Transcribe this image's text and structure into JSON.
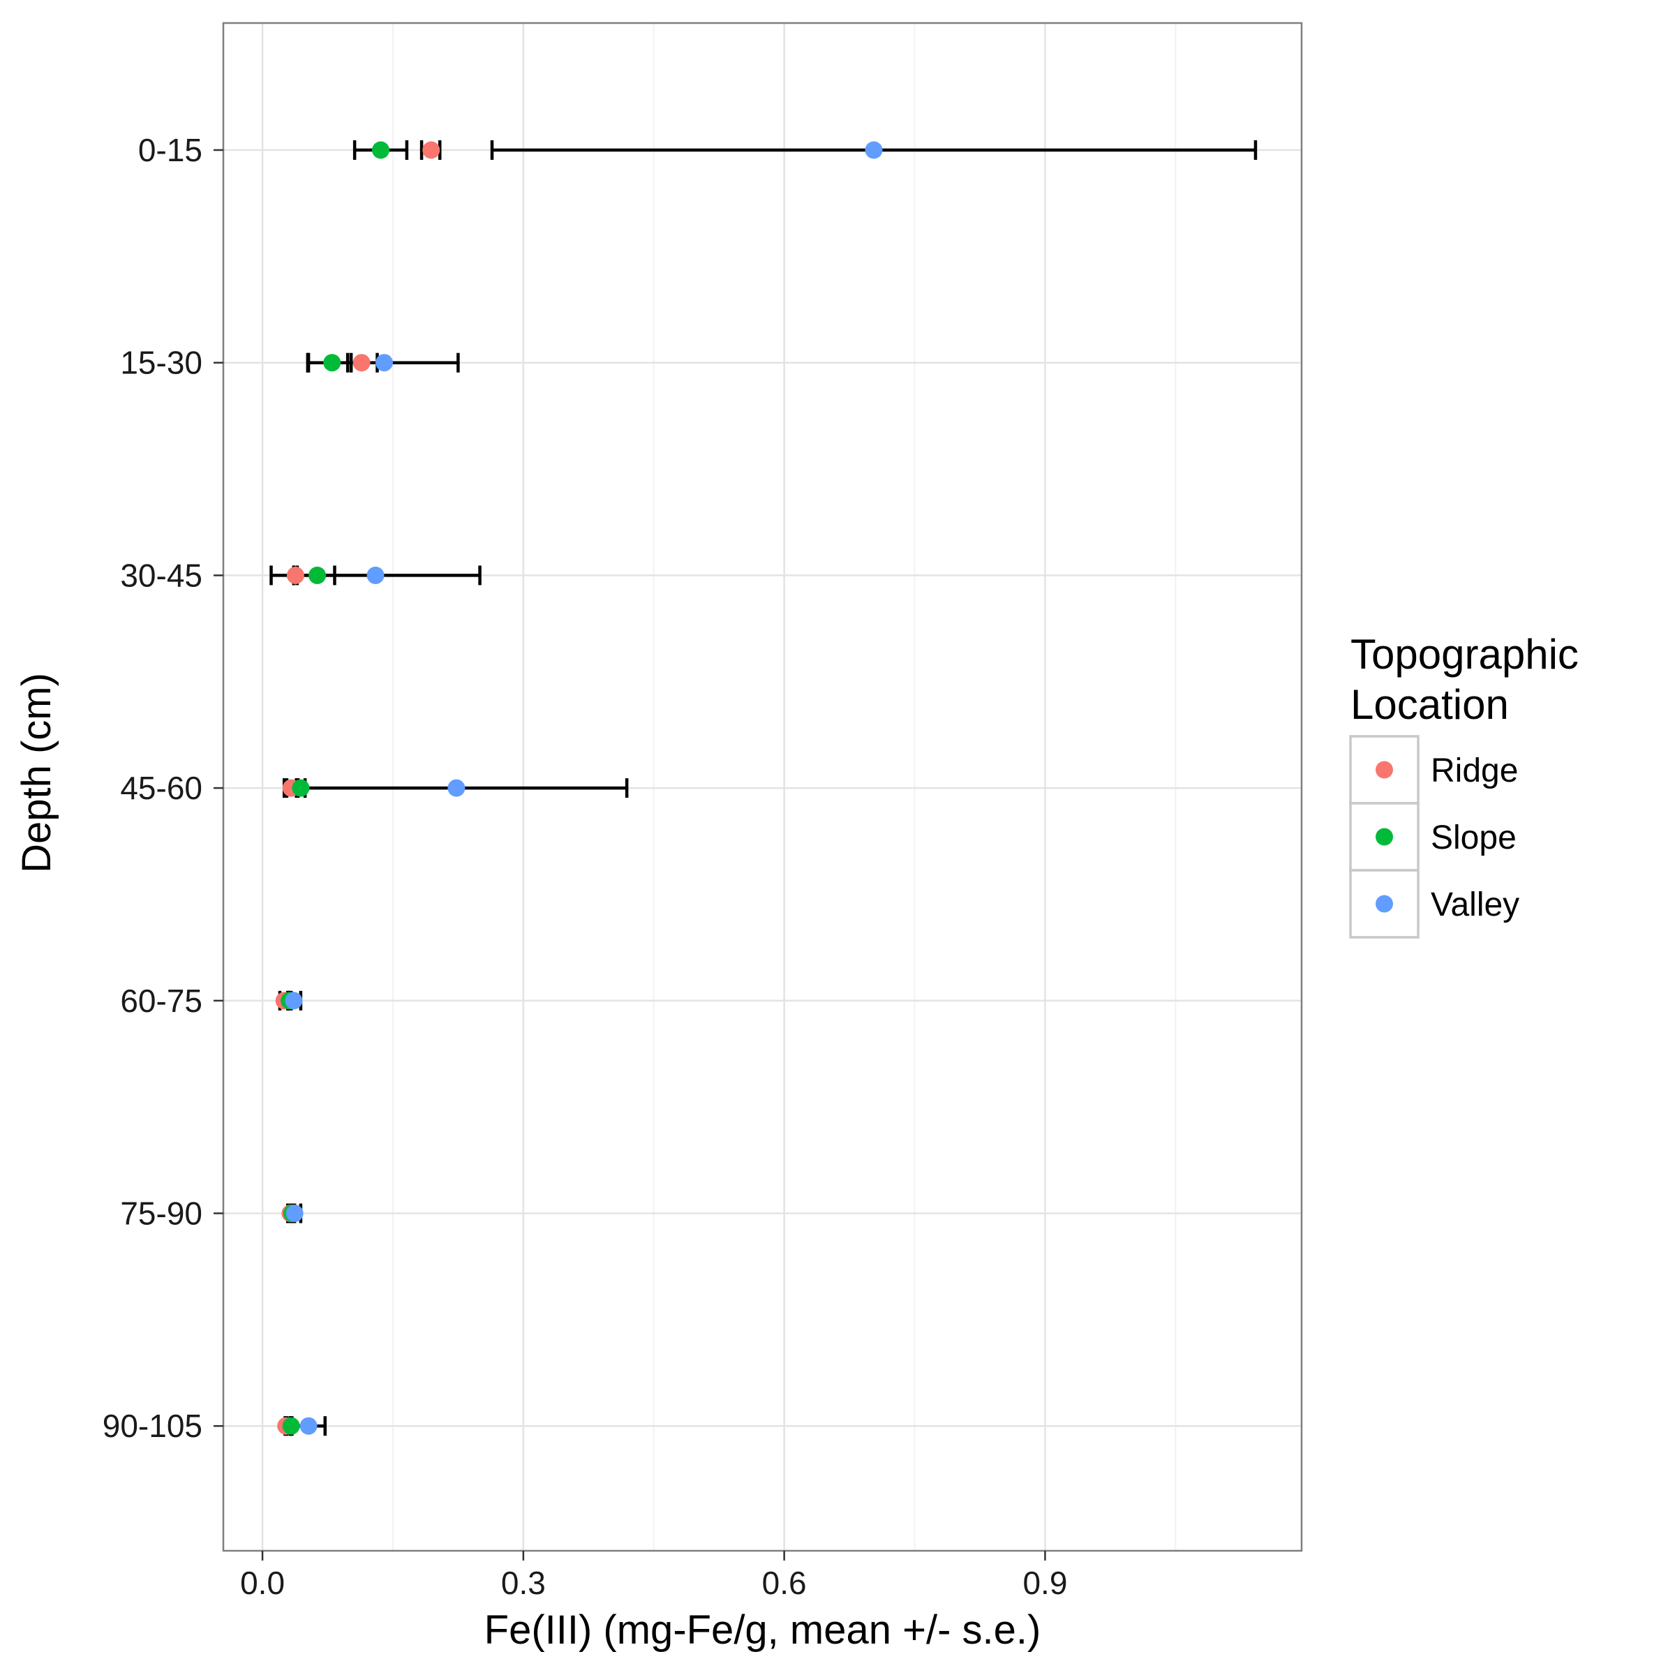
{
  "chart_data": {
    "type": "scatter",
    "orientation": "horizontal-errorbar",
    "xlabel": "Fe(III) (mg-Fe/g, mean +/- s.e.)",
    "ylabel": "Depth (cm)",
    "xlim": [
      -0.045,
      1.195
    ],
    "x_ticks": [
      {
        "value": 0.0,
        "label": "0.0"
      },
      {
        "value": 0.3,
        "label": "0.3"
      },
      {
        "value": 0.6,
        "label": "0.6"
      },
      {
        "value": 0.9,
        "label": "0.9"
      }
    ],
    "x_minor_grid": [
      0.15,
      0.45,
      0.75,
      1.05
    ],
    "categories": [
      "0-15",
      "15-30",
      "30-45",
      "45-60",
      "60-75",
      "75-90",
      "90-105"
    ],
    "grid": true,
    "legend": {
      "title_line1": "Topographic",
      "title_line2": "Location",
      "placement": "right"
    },
    "series": [
      {
        "name": "Ridge",
        "color": "#F8766D",
        "mean": [
          0.194,
          0.114,
          0.038,
          0.033,
          0.025,
          0.032,
          0.027
        ],
        "lower": [
          0.183,
          0.098,
          0.036,
          0.025,
          0.02,
          0.029,
          0.026
        ],
        "upper": [
          0.204,
          0.132,
          0.04,
          0.041,
          0.03,
          0.035,
          0.028
        ]
      },
      {
        "name": "Slope",
        "color": "#00BA38",
        "mean": [
          0.136,
          0.08,
          0.063,
          0.044,
          0.031,
          0.034,
          0.033
        ],
        "lower": [
          0.106,
          0.052,
          0.036,
          0.039,
          0.029,
          0.031,
          0.032
        ],
        "upper": [
          0.166,
          0.102,
          0.083,
          0.049,
          0.033,
          0.037,
          0.034
        ]
      },
      {
        "name": "Valley",
        "color": "#619CFF",
        "mean": [
          0.703,
          0.14,
          0.13,
          0.223,
          0.036,
          0.037,
          0.053
        ],
        "lower": [
          0.264,
          0.053,
          0.01,
          0.028,
          0.03,
          0.034,
          0.032
        ],
        "upper": [
          1.142,
          0.225,
          0.25,
          0.419,
          0.044,
          0.044,
          0.072
        ]
      }
    ]
  }
}
